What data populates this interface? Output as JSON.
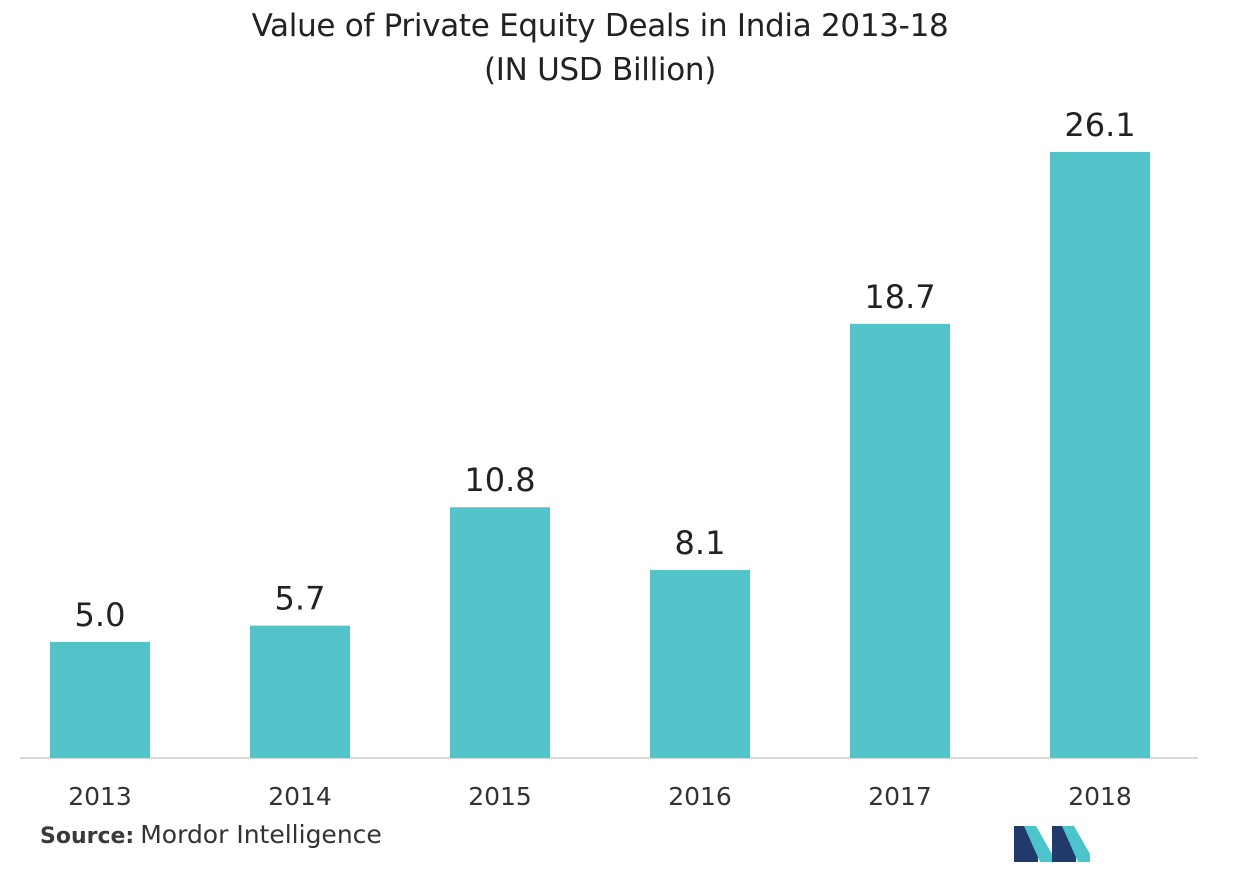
{
  "chart_data": {
    "type": "bar",
    "title": "Value of Private Equity Deals in India 2013-18",
    "subtitle": "(IN USD Billion)",
    "categories": [
      "2013",
      "2014",
      "2015",
      "2016",
      "2017",
      "2018"
    ],
    "values": [
      5.0,
      5.7,
      10.8,
      8.1,
      18.7,
      26.1
    ],
    "value_labels": [
      "5.0",
      "5.7",
      "10.8",
      "8.1",
      "18.7",
      "26.1"
    ],
    "xlabel": "",
    "ylabel": "",
    "ylim": [
      0,
      26.1
    ],
    "grid": false,
    "bar_color": "#52c4c9"
  },
  "source": {
    "label": "Source:",
    "text": "Mordor Intelligence"
  },
  "logo": {
    "icon": "mordor-intelligence-logo-icon",
    "colors": [
      "#1f3a6b",
      "#4dc3cb"
    ]
  }
}
